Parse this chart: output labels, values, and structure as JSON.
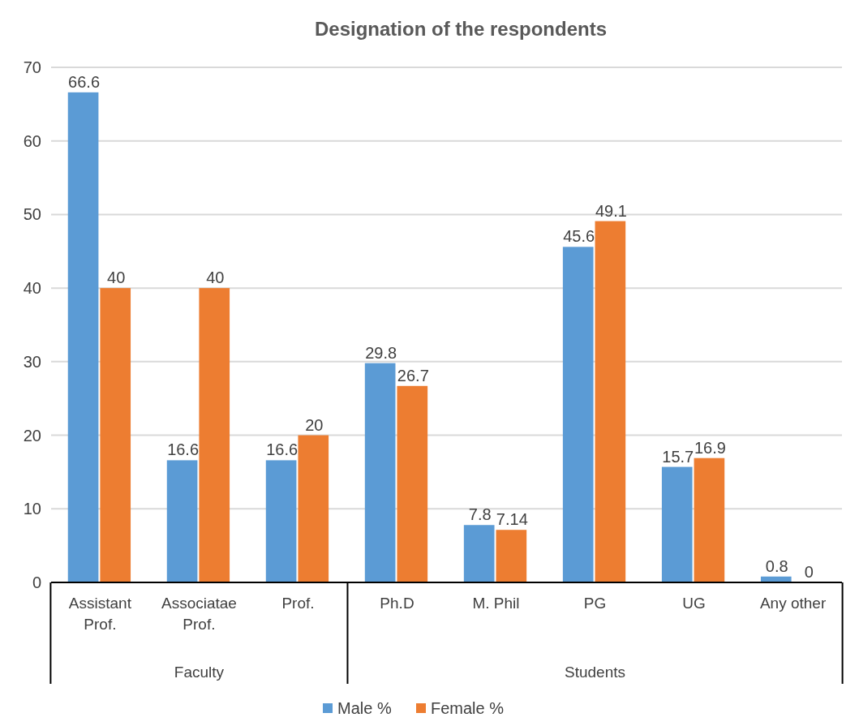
{
  "chart_data": {
    "type": "bar",
    "title": "Designation of the respondents",
    "categories": [
      "Assistant Prof.",
      "Associatae Prof.",
      "Prof.",
      "Ph.D",
      "M. Phil",
      "PG",
      "UG",
      "Any other"
    ],
    "series": [
      {
        "name": "Male %",
        "color": "#5b9bd5",
        "values": [
          66.6,
          16.6,
          16.6,
          29.8,
          7.8,
          45.6,
          15.7,
          0.8
        ]
      },
      {
        "name": "Female %",
        "color": "#ed7d31",
        "values": [
          40,
          40,
          20,
          26.7,
          7.14,
          49.1,
          16.9,
          0
        ]
      }
    ],
    "annotations": [
      "Faculty",
      "Students"
    ],
    "ylim": [
      0,
      70
    ],
    "yticks": [
      0,
      10,
      20,
      30,
      40,
      50,
      60,
      70
    ],
    "grid": "y",
    "legend": "bottom",
    "data_labels": true
  }
}
